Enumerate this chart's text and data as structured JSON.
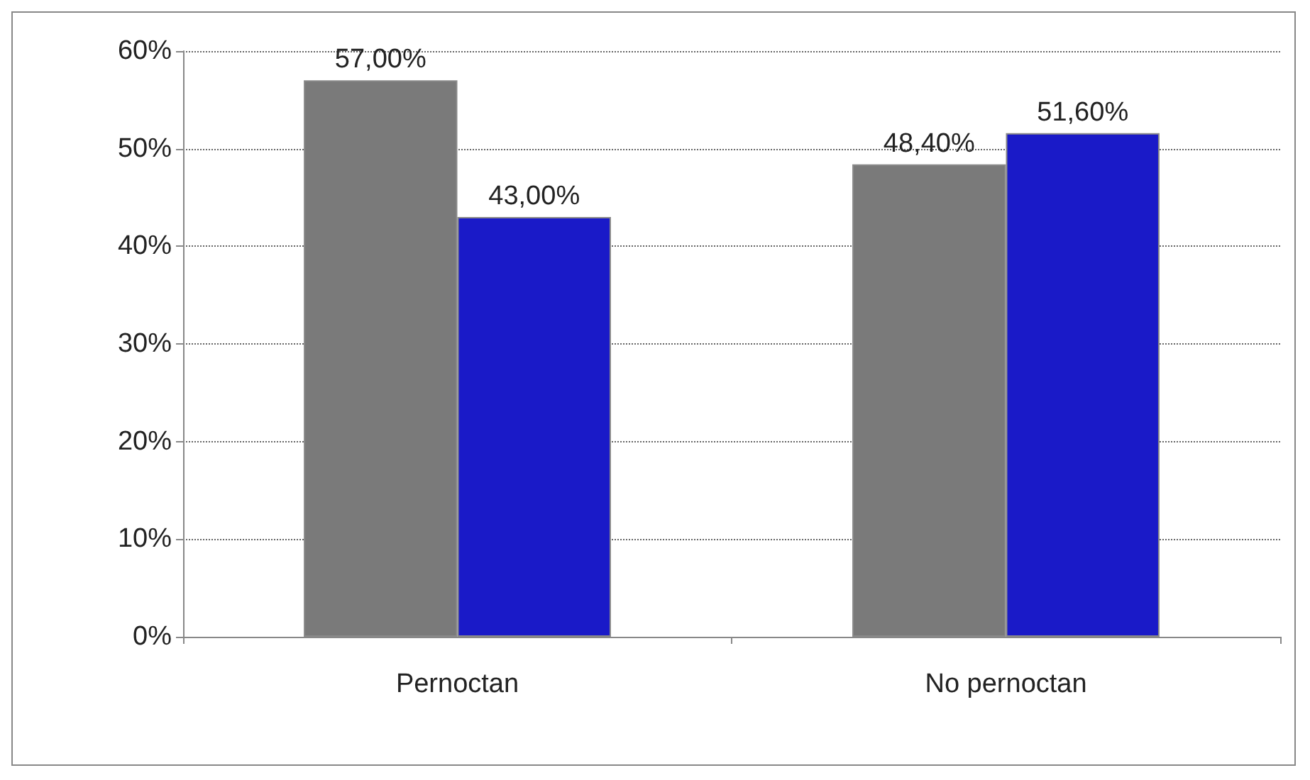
{
  "chart_data": {
    "type": "bar",
    "categories": [
      "Pernoctan",
      "No pernoctan"
    ],
    "series": [
      {
        "color": "#7a7a7a",
        "values": [
          57,
          48.4
        ],
        "value_labels": [
          "57,00%",
          "48,40%"
        ]
      },
      {
        "color": "#1a1ac8",
        "values": [
          43,
          51.6
        ],
        "value_labels": [
          "43,00%",
          "51,60%"
        ]
      }
    ],
    "ylim": [
      0,
      60
    ],
    "yticks": [
      {
        "value": 0,
        "label": "0%"
      },
      {
        "value": 10,
        "label": "10%"
      },
      {
        "value": 20,
        "label": "20%"
      },
      {
        "value": 30,
        "label": "30%"
      },
      {
        "value": 40,
        "label": "40%"
      },
      {
        "value": 50,
        "label": "50%"
      },
      {
        "value": 60,
        "label": "60%"
      }
    ],
    "grid": "y"
  }
}
